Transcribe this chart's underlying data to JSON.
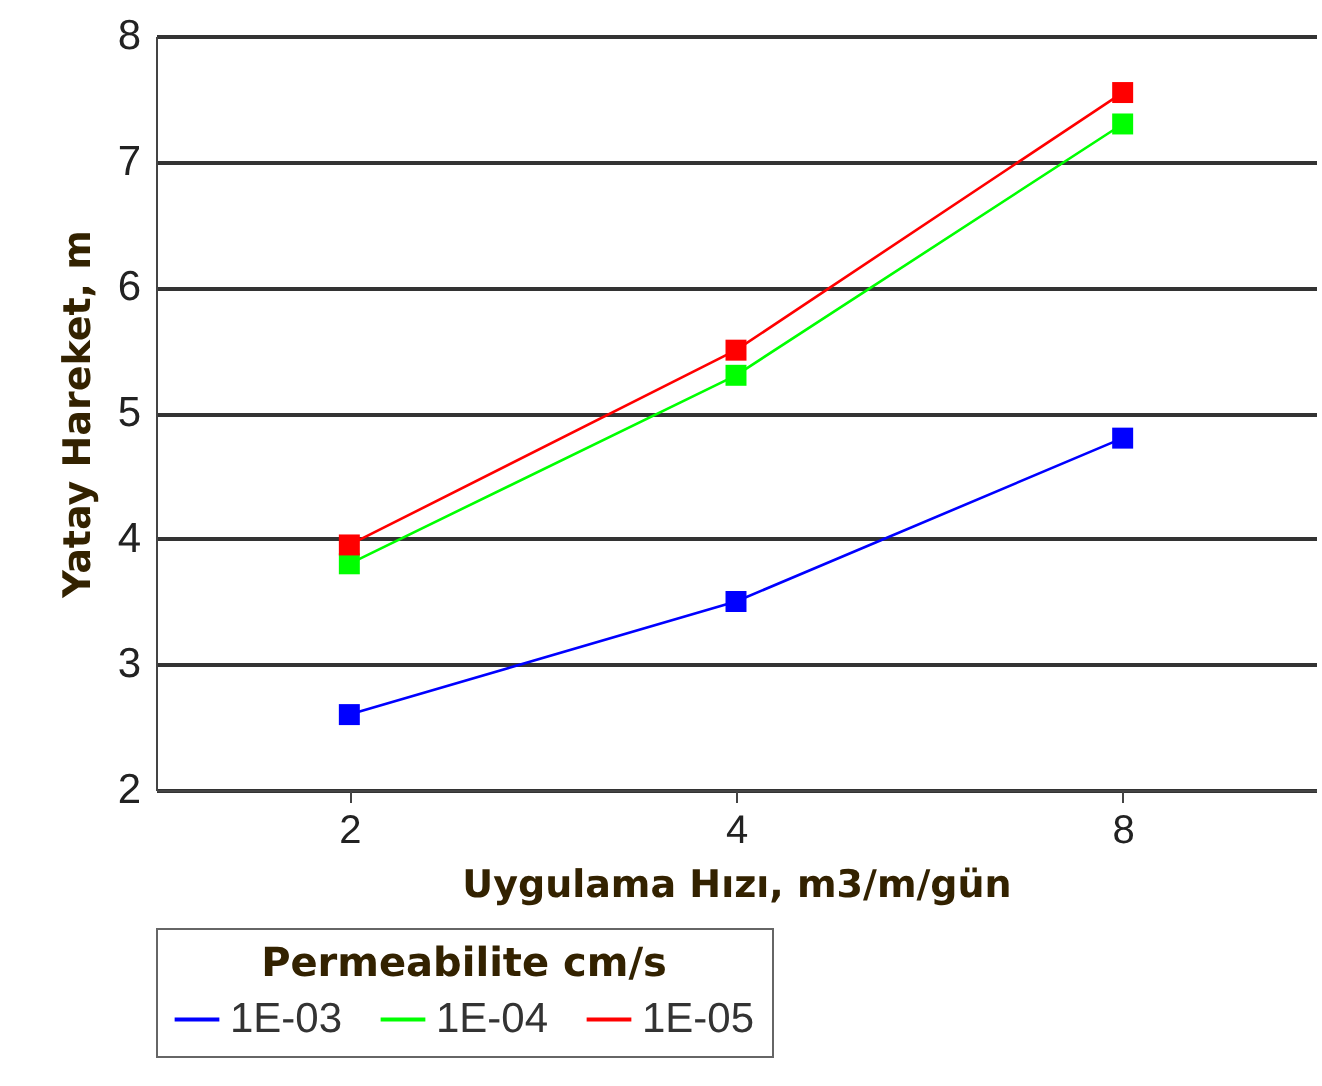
{
  "chart_data": {
    "type": "line",
    "xlabel": "Uygulama Hızı, m3/m/gün",
    "ylabel": "Yatay Hareket, m",
    "legend_title": "Permeabilite cm/s",
    "categories": [
      "2",
      "4",
      "8"
    ],
    "series": [
      {
        "name": "1E-03",
        "color": "#0000ff",
        "values": [
          2.6,
          3.5,
          4.8
        ]
      },
      {
        "name": "1E-04",
        "color": "#00ff00",
        "values": [
          3.8,
          5.3,
          7.3
        ]
      },
      {
        "name": "1E-05",
        "color": "#ff0000",
        "values": [
          3.95,
          5.5,
          7.55
        ]
      }
    ],
    "ylim": [
      2,
      8
    ],
    "yticks": [
      2,
      3,
      4,
      5,
      6,
      7,
      8
    ],
    "grid": "y",
    "legend": "bottom",
    "marker": "square",
    "line_style": "solid"
  }
}
